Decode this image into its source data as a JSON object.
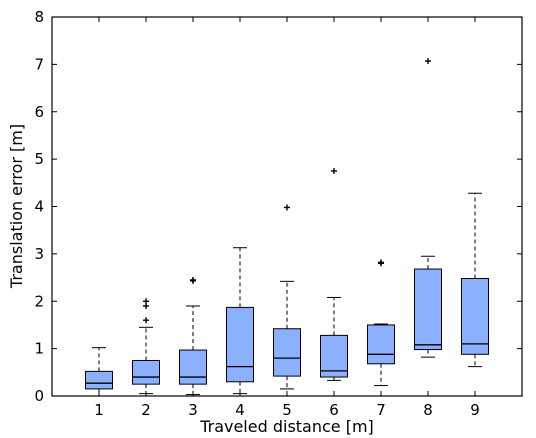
{
  "chart_data": {
    "type": "box",
    "xlabel": "Traveled distance [m]",
    "ylabel": "Translation error [m]",
    "ylim": [
      0,
      8
    ],
    "yticks": [
      0,
      1,
      2,
      3,
      4,
      5,
      6,
      7,
      8
    ],
    "box_color": "#8ab0ff",
    "categories": [
      "1",
      "2",
      "3",
      "4",
      "5",
      "6",
      "7",
      "8",
      "9"
    ],
    "boxes": [
      {
        "category": "1",
        "whisker_low": 0.0,
        "q1": 0.15,
        "median": 0.27,
        "q3": 0.52,
        "whisker_high": 1.02,
        "outliers": []
      },
      {
        "category": "2",
        "whisker_low": 0.05,
        "q1": 0.25,
        "median": 0.4,
        "q3": 0.75,
        "whisker_high": 1.45,
        "outliers": [
          1.6,
          1.9,
          2.0
        ]
      },
      {
        "category": "3",
        "whisker_low": 0.03,
        "q1": 0.25,
        "median": 0.4,
        "q3": 0.97,
        "whisker_high": 1.9,
        "outliers": [
          2.43,
          2.45
        ]
      },
      {
        "category": "4",
        "whisker_low": 0.05,
        "q1": 0.3,
        "median": 0.62,
        "q3": 1.87,
        "whisker_high": 3.13,
        "outliers": []
      },
      {
        "category": "5",
        "whisker_low": 0.15,
        "q1": 0.42,
        "median": 0.8,
        "q3": 1.42,
        "whisker_high": 2.42,
        "outliers": [
          3.98
        ]
      },
      {
        "category": "6",
        "whisker_low": 0.33,
        "q1": 0.4,
        "median": 0.53,
        "q3": 1.28,
        "whisker_high": 2.08,
        "outliers": [
          4.75
        ]
      },
      {
        "category": "7",
        "whisker_low": 0.22,
        "q1": 0.68,
        "median": 0.88,
        "q3": 1.5,
        "whisker_high": 1.52,
        "outliers": [
          2.8,
          2.82
        ]
      },
      {
        "category": "8",
        "whisker_low": 0.82,
        "q1": 0.98,
        "median": 1.08,
        "q3": 2.68,
        "whisker_high": 2.95,
        "outliers": [
          7.07
        ]
      },
      {
        "category": "9",
        "whisker_low": 0.62,
        "q1": 0.88,
        "median": 1.1,
        "q3": 2.48,
        "whisker_high": 4.28,
        "outliers": []
      }
    ]
  }
}
